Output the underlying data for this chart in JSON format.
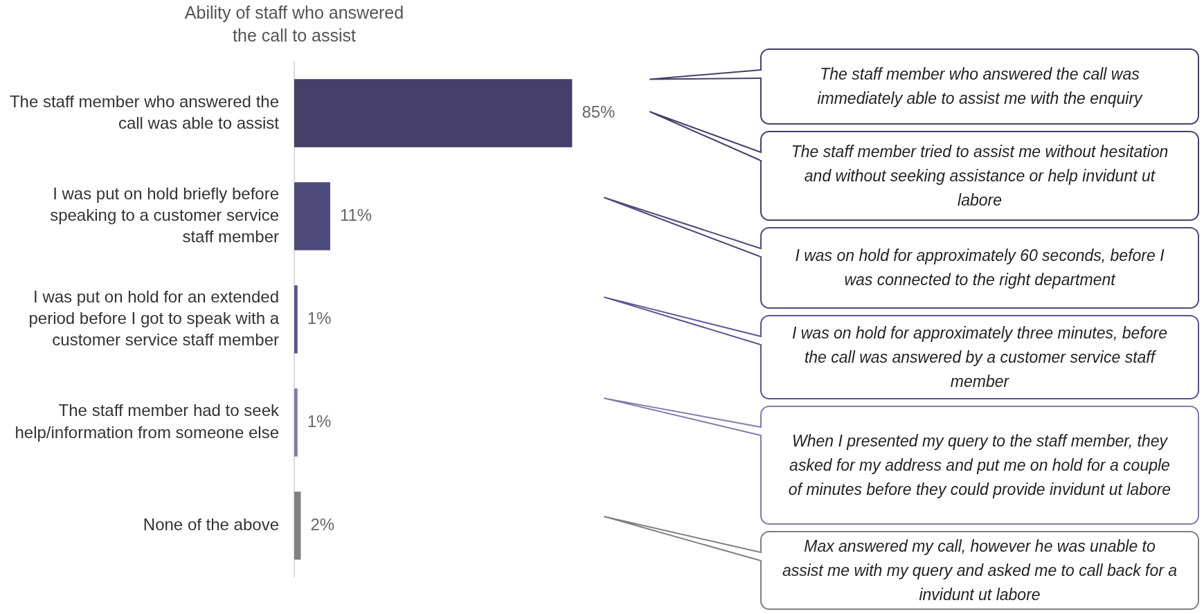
{
  "chart_data": {
    "type": "bar",
    "orientation": "horizontal",
    "title": "Ability of staff who answered the call to assist",
    "categories": [
      "The staff member who answered the call was able to assist",
      "I was put on hold briefly before speaking to a customer service staff member",
      "I was put on hold for an extended period before I got to speak with a customer service staff member",
      "The staff member had to seek help/information from someone else",
      "None of the above"
    ],
    "values": [
      85,
      11,
      1,
      1,
      2
    ],
    "value_labels": [
      "85%",
      "11%",
      "1%",
      "1%",
      "2%"
    ],
    "colors": [
      "#463f69",
      "#4f4a7c",
      "#5a5490",
      "#807aab",
      "#808080"
    ],
    "tick_labels": "y",
    "annotations": [
      "The staff member who answered the call was immediately able to assist me with the enquiry",
      "The staff member tried to assist me without hesitation and without seeking assistance or help invidunt ut labore",
      "I was on hold for approximately 60 seconds, before I was connected to the right department",
      "I was on hold for approximately three minutes, before the call was answered by a customer service staff member",
      "When I presented my query to the staff member, they asked for my address and put me on hold for a couple of minutes before they could provide invidunt ut labore",
      "Max answered my call, however he was unable to assist me with my query and asked me to call back for a invidunt ut labore"
    ]
  }
}
